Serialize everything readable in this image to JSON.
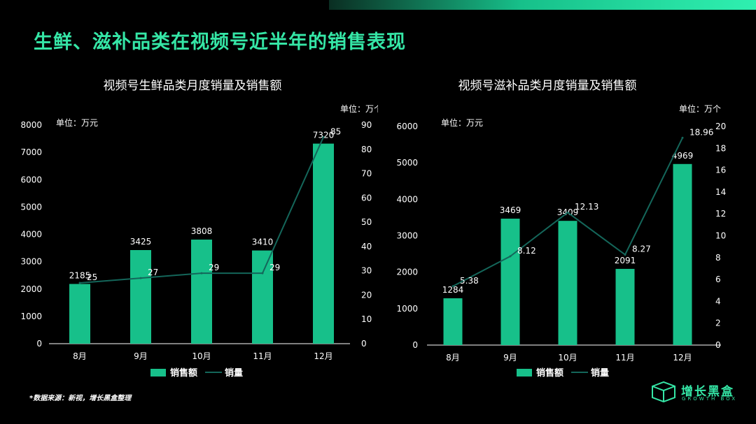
{
  "page_title": "生鲜、滋补品类在视频号近半年的销售表现",
  "source_note": "*数据来源：新视，增长黑盒整理",
  "brand": {
    "name": "增长黑盒",
    "sub": "GROWTH BOX"
  },
  "colors": {
    "bar": "#17c08a",
    "line": "#14665a",
    "title": "#35e6a6"
  },
  "chart_data": [
    {
      "type": "bar",
      "title": "视频号生鲜品类月度销量及销售额",
      "left_unit": "单位：万元",
      "right_unit": "单位：万个",
      "categories": [
        "8月",
        "9月",
        "10月",
        "11月",
        "12月"
      ],
      "series": [
        {
          "name": "销售额",
          "type": "bar",
          "axis": "left",
          "values": [
            2185,
            3425,
            3808,
            3410,
            7320
          ],
          "labels": [
            "2185",
            "3425",
            "3808",
            "3410",
            "7320"
          ]
        },
        {
          "name": "销量",
          "type": "line",
          "axis": "right",
          "values": [
            25,
            27,
            29,
            29,
            85
          ],
          "labels": [
            "25",
            "27",
            "29",
            "29",
            "85"
          ]
        }
      ],
      "ylim_left": [
        0,
        8000
      ],
      "yticks_left": [
        "0",
        "1000",
        "2000",
        "3000",
        "4000",
        "5000",
        "6000",
        "7000",
        "8000"
      ],
      "ylim_right": [
        0,
        90
      ],
      "yticks_right": [
        "0",
        "10",
        "20",
        "30",
        "40",
        "50",
        "60",
        "70",
        "80",
        "90"
      ],
      "legend": {
        "position": "bottom",
        "bar_label": "销售额",
        "line_label": "销量"
      },
      "grid": false
    },
    {
      "type": "bar",
      "title": "视频号滋补品类月度销量及销售额",
      "left_unit": "单位：万元",
      "right_unit": "单位：万个",
      "categories": [
        "8月",
        "9月",
        "10月",
        "11月",
        "12月"
      ],
      "series": [
        {
          "name": "销售额",
          "type": "bar",
          "axis": "left",
          "values": [
            1284,
            3469,
            3409,
            2091,
            4969
          ],
          "labels": [
            "1284",
            "3469",
            "3409",
            "2091",
            "4969"
          ]
        },
        {
          "name": "销量",
          "type": "line",
          "axis": "right",
          "values": [
            5.38,
            8.12,
            12.13,
            8.27,
            18.96
          ],
          "labels": [
            "5.38",
            "8.12",
            "12.13",
            "8.27",
            "18.96"
          ]
        }
      ],
      "ylim_left": [
        0,
        6000
      ],
      "yticks_left": [
        "0",
        "1000",
        "2000",
        "3000",
        "4000",
        "5000",
        "6000"
      ],
      "ylim_right": [
        0,
        20
      ],
      "yticks_right": [
        "0",
        "2",
        "4",
        "6",
        "8",
        "10",
        "12",
        "14",
        "16",
        "18",
        "20"
      ],
      "legend": {
        "position": "bottom",
        "bar_label": "销售额",
        "line_label": "销量"
      },
      "grid": false
    }
  ]
}
